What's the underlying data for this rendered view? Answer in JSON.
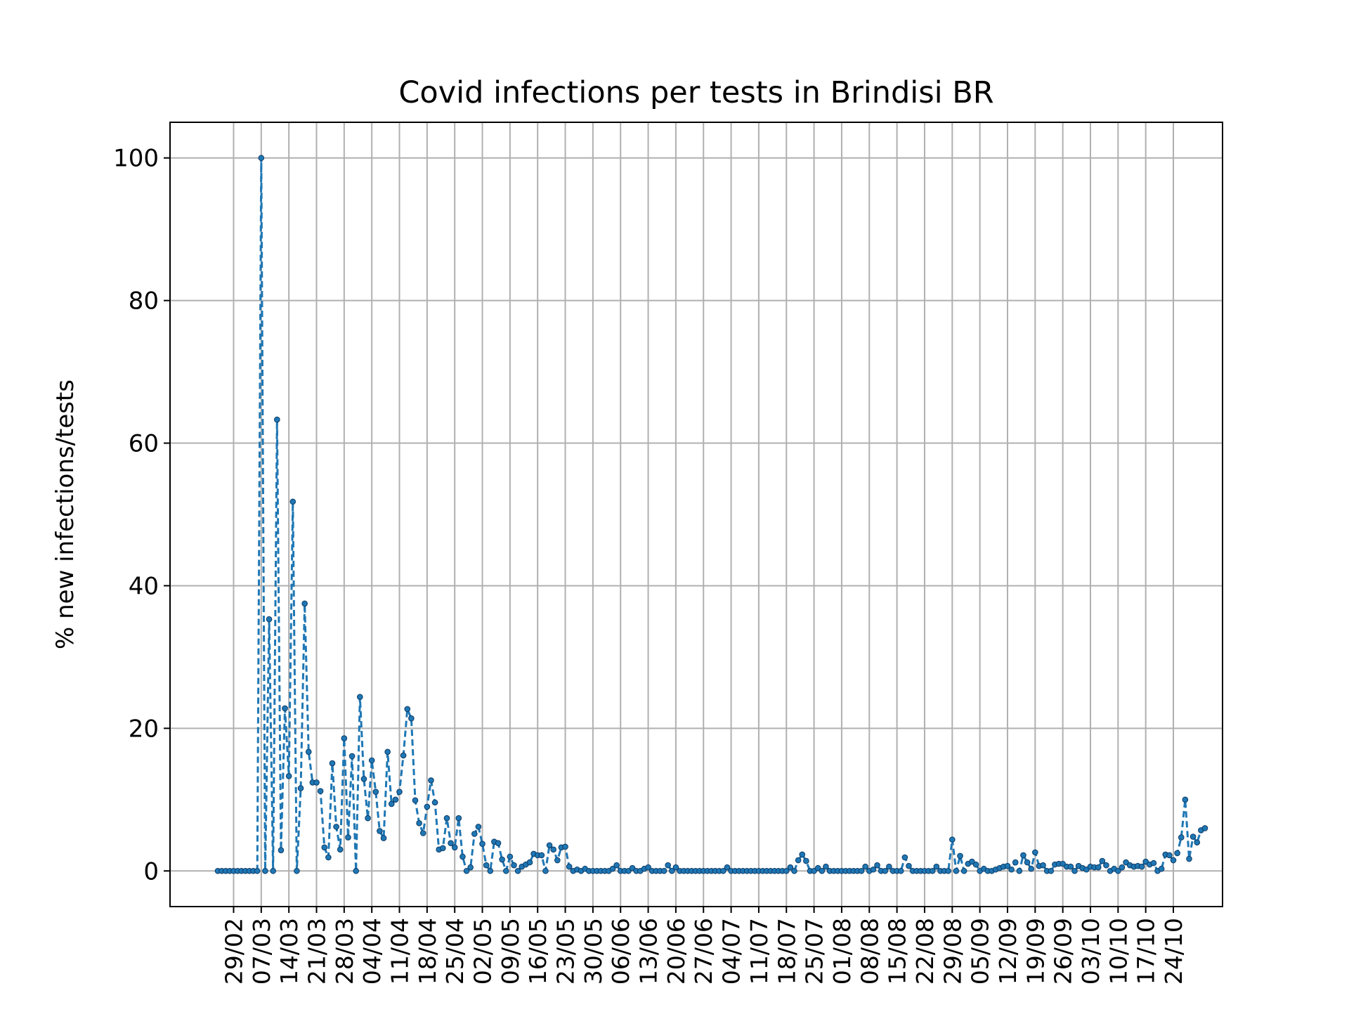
{
  "chart_data": {
    "type": "line",
    "title": "Covid infections per tests in Brindisi BR",
    "xlabel": "",
    "ylabel": "% new infections/tests",
    "grid": true,
    "line_color": "#1f77b4",
    "line_style": "dashed with dot markers",
    "yticks": [
      0,
      20,
      40,
      60,
      80,
      100
    ],
    "ylim": [
      -5,
      105
    ],
    "xticks": [
      "29/02",
      "07/03",
      "14/03",
      "21/03",
      "28/03",
      "04/04",
      "11/04",
      "18/04",
      "25/04",
      "02/05",
      "09/05",
      "16/05",
      "23/05",
      "30/05",
      "06/06",
      "13/06",
      "20/06",
      "27/06",
      "04/07",
      "11/07",
      "18/07",
      "25/07",
      "01/08",
      "08/08",
      "15/08",
      "22/08",
      "29/08",
      "05/09",
      "12/09",
      "19/09",
      "26/09",
      "03/10",
      "10/10",
      "17/10",
      "24/10"
    ],
    "xtick_start_day": 4,
    "x_first_day": 0,
    "x_last_day": 242,
    "series": [
      {
        "name": "",
        "values": [
          0,
          0,
          0,
          0,
          0,
          0,
          0,
          0,
          0,
          0,
          0,
          100,
          0,
          35.3,
          0,
          63.3,
          2.9,
          22.8,
          13.3,
          51.8,
          0,
          11.6,
          37.5,
          16.7,
          12.4,
          12.4,
          11.2,
          3.3,
          1.9,
          15.1,
          6.2,
          3,
          18.6,
          4.7,
          16.1,
          0,
          24.4,
          12.9,
          7.4,
          15.5,
          11.1,
          5.6,
          4.6,
          16.7,
          9.4,
          10,
          11.1,
          16.2,
          22.7,
          21.4,
          9.9,
          6.7,
          5.3,
          9,
          12.7,
          9.6,
          3,
          3.2,
          7.4,
          3.9,
          3.3,
          7.4,
          2,
          0,
          0.5,
          5.2,
          6.2,
          3.8,
          0.8,
          0,
          4.1,
          3.9,
          1.6,
          0,
          2,
          0.8,
          0,
          0.6,
          0.9,
          1.2,
          2.4,
          2.2,
          2.2,
          0,
          3.6,
          3,
          1.5,
          3.3,
          3.4,
          0.6,
          0,
          0.2,
          0,
          0.3,
          0,
          0,
          0,
          0,
          0,
          0,
          0.3,
          0.8,
          0,
          0,
          0,
          0.4,
          0,
          0,
          0.3,
          0.5,
          0,
          0,
          0,
          0,
          0.8,
          0,
          0.5,
          0,
          0,
          0,
          0,
          0,
          0,
          0,
          0,
          0,
          0,
          0,
          0,
          0.5,
          0,
          0,
          0,
          0,
          0,
          0,
          0,
          0,
          0,
          0,
          0,
          0,
          0,
          0,
          0,
          0.5,
          0,
          1.5,
          2.3,
          1.4,
          0,
          0,
          0.4,
          0,
          0.6,
          0,
          0,
          0,
          0,
          0,
          0,
          0,
          0,
          0,
          0.6,
          0,
          0.2,
          0.8,
          0,
          0,
          0.6,
          0,
          0,
          0,
          1.9,
          0.7,
          0,
          0,
          0,
          0,
          0,
          0,
          0.6,
          0,
          0,
          0,
          4.4,
          0,
          2.1,
          0,
          1,
          1.3,
          0.9,
          0,
          0.3,
          0,
          0,
          0.2,
          0.4,
          0.6,
          0.7,
          0.2,
          1.2,
          0,
          2.2,
          1.2,
          0.3,
          2.6,
          0.7,
          0.8,
          0,
          0,
          0.9,
          1,
          1,
          0.6,
          0.6,
          0,
          0.7,
          0.4,
          0.2,
          0.6,
          0.5,
          0.5,
          1.4,
          0.8,
          0,
          0.3,
          0,
          0.5,
          1.2,
          0.8,
          0.6,
          0.7,
          0.6,
          1.3,
          0.9,
          1.1,
          0,
          0.3,
          2.3,
          2.2,
          1.5,
          2.5,
          4.7,
          10,
          1.7,
          4.8,
          4,
          5.7,
          6
        ]
      }
    ]
  }
}
